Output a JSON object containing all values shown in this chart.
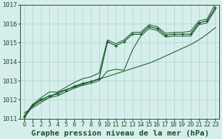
{
  "x": [
    0,
    1,
    2,
    3,
    4,
    5,
    6,
    7,
    8,
    9,
    10,
    11,
    12,
    13,
    14,
    15,
    16,
    17,
    18,
    19,
    20,
    21,
    22,
    23
  ],
  "line_main": [
    1011.1,
    1011.7,
    1012.0,
    1012.2,
    1012.3,
    1012.5,
    1012.7,
    1012.85,
    1012.95,
    1013.1,
    1015.05,
    1014.85,
    1015.05,
    1015.45,
    1015.45,
    1015.85,
    1015.75,
    1015.4,
    1015.45,
    1015.45,
    1015.45,
    1016.05,
    1016.15,
    1016.85
  ],
  "line_upper": [
    1011.15,
    1011.75,
    1012.1,
    1012.4,
    1012.4,
    1012.65,
    1012.9,
    1013.1,
    1013.2,
    1013.4,
    1015.15,
    1014.95,
    1015.15,
    1015.55,
    1015.55,
    1015.95,
    1015.85,
    1015.5,
    1015.55,
    1015.55,
    1015.6,
    1016.15,
    1016.25,
    1017.05
  ],
  "line_lower": [
    1011.05,
    1011.65,
    1011.95,
    1012.1,
    1012.2,
    1012.4,
    1012.6,
    1012.75,
    1012.85,
    1013.0,
    1013.5,
    1013.6,
    1013.55,
    1014.6,
    1015.35,
    1015.75,
    1015.65,
    1015.3,
    1015.35,
    1015.35,
    1015.35,
    1015.95,
    1016.05,
    1016.75
  ],
  "line_trend": [
    1011.3,
    1011.57,
    1011.84,
    1012.11,
    1012.38,
    1012.52,
    1012.66,
    1012.8,
    1012.94,
    1013.08,
    1013.22,
    1013.36,
    1013.5,
    1013.64,
    1013.78,
    1013.92,
    1014.1,
    1014.3,
    1014.5,
    1014.7,
    1014.9,
    1015.15,
    1015.45,
    1015.8
  ],
  "bg_color": "#d6eeeb",
  "grid_color": "#b0d8d0",
  "line_color": "#2d6e3e",
  "line_color_dark": "#1a4f2a",
  "ylabel_min": 1011,
  "ylabel_max": 1017,
  "xlabel": "Graphe pression niveau de la mer (hPa)",
  "xlabel_fontsize": 8,
  "tick_fontsize": 6.5
}
